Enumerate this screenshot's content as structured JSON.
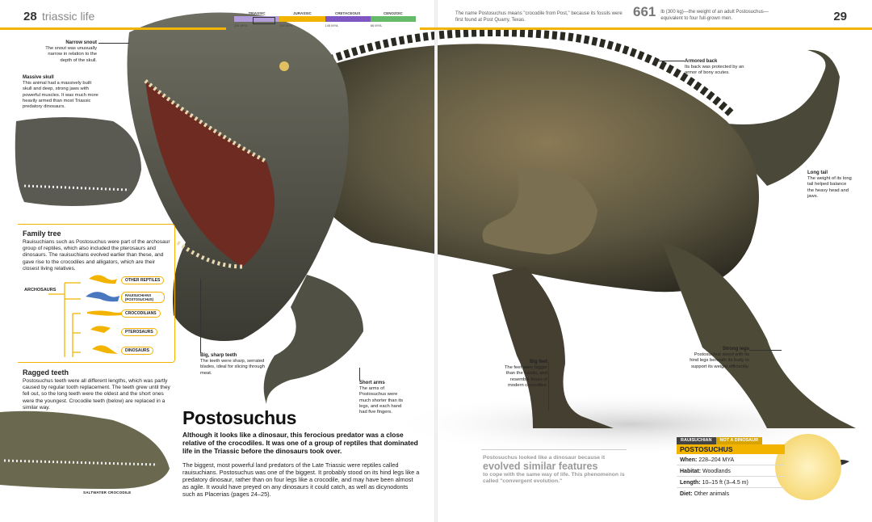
{
  "header": {
    "left_page_number": "28",
    "section_title": "triassic life",
    "right_page_number": "29",
    "timeline": {
      "periods": [
        "TRIASSIC",
        "JURASSIC",
        "CRETACEOUS",
        "CENOZOIC"
      ],
      "colors": [
        "#b39ddb",
        "#f3b400",
        "#7e57c2",
        "#66bb6a"
      ],
      "dates": [
        "251 MYA",
        "200 MYA",
        "145 MYA",
        "66 MYA"
      ]
    },
    "fact_name": "The name Postosuchus means \"crocodile from Post,\" because its fossils were first found at Post Quarry, Texas.",
    "fact_weight_number": "661",
    "fact_weight_text": "lb (300 kg)—the weight of an adult Postosuchus—equivalent to four full-grown men."
  },
  "annotations": {
    "narrow_snout": {
      "title": "Narrow snout",
      "text": "The snout was unusually narrow in relation to the depth of the skull."
    },
    "massive_skull": {
      "title": "Massive skull",
      "text": "This animal had a massively built skull and deep, strong jaws with powerful muscles. It was much more heavily armed than most Triassic predatory dinosaurs."
    },
    "big_sharp_teeth": {
      "title": "Big, sharp teeth",
      "text": "The teeth were sharp, serrated blades, ideal for slicing through meat."
    },
    "short_arms": {
      "title": "Short arms",
      "text": "The arms of Postosuchus were much shorter than its legs, and each hand had five fingers."
    },
    "big_feet": {
      "title": "Big feet",
      "text": "The feet were bigger than the hands, and resemble those of modern crocodiles."
    },
    "armored_back": {
      "title": "Armored back",
      "text": "Its back was protected by an armor of bony scutes."
    },
    "long_tail": {
      "title": "Long tail",
      "text": "The weight of its long tail helped balance the heavy head and jaws."
    },
    "strong_legs": {
      "title": "Strong legs",
      "text": "Postosuchus stood with its hind legs beneath its body to support its weight efficiently."
    }
  },
  "family_tree": {
    "title": "Family tree",
    "text": "Rauisuchians such as Postosuchus were part of the archosaur group of reptiles, which also included the pterosaurs and dinosaurs. The rauisuchians evolved earlier than these, and gave rise to the crocodiles and alligators, which are their closest living relatives.",
    "root_label": "ARCHOSAURS",
    "branches": [
      "OTHER REPTILES",
      "RAUISUCHIANS (POSTOSUCHUS)",
      "CROCODILIANS",
      "PTEROSAURS",
      "DINOSAURS"
    ]
  },
  "ragged_teeth": {
    "title": "Ragged teeth",
    "text": "Postosuchus teeth were all different lengths, which was partly caused by regular tooth replacement. The teeth grew until they fell out, so the long teeth were the oldest and the short ones were the youngest. Crocodile teeth (below) are replaced in a similar way.",
    "photo_caption": "SALTWATER CROCODILE"
  },
  "main": {
    "title": "Postosuchus",
    "intro": "Although it looks like a dinosaur, this ferocious predator was a close relative of the crocodiles. It was one of a group of reptiles that dominated life in the Triassic before the dinosaurs took over.",
    "body": "The biggest, most powerful land predators of the Late Triassic were reptiles called rauisuchians. Postosuchus was one of the biggest. It probably stood on its hind legs like a predatory dinosaur, rather than on four legs like a crocodile, and may have been almost as agile. It would have preyed on any dinosaurs it could catch, as well as dicynodonts such as Placerias (pages 24–25)."
  },
  "callout": {
    "line1": "Postosuchus looked like a dinosaur because it",
    "big": "evolved similar features",
    "line2": "to cope with the same way of life. This phenomenon is called \"convergent evolution.\""
  },
  "data_card": {
    "tab_group": "RAUISUCHIAN",
    "tab_note": "NOT A DINOSAUR",
    "name": "POSTOSUCHUS",
    "rows": [
      {
        "key": "When:",
        "value": "228–204 MYA"
      },
      {
        "key": "Habitat:",
        "value": "Woodlands"
      },
      {
        "key": "Length:",
        "value": "10–15 ft (3–4.5 m)"
      },
      {
        "key": "Diet:",
        "value": "Other animals"
      }
    ]
  }
}
